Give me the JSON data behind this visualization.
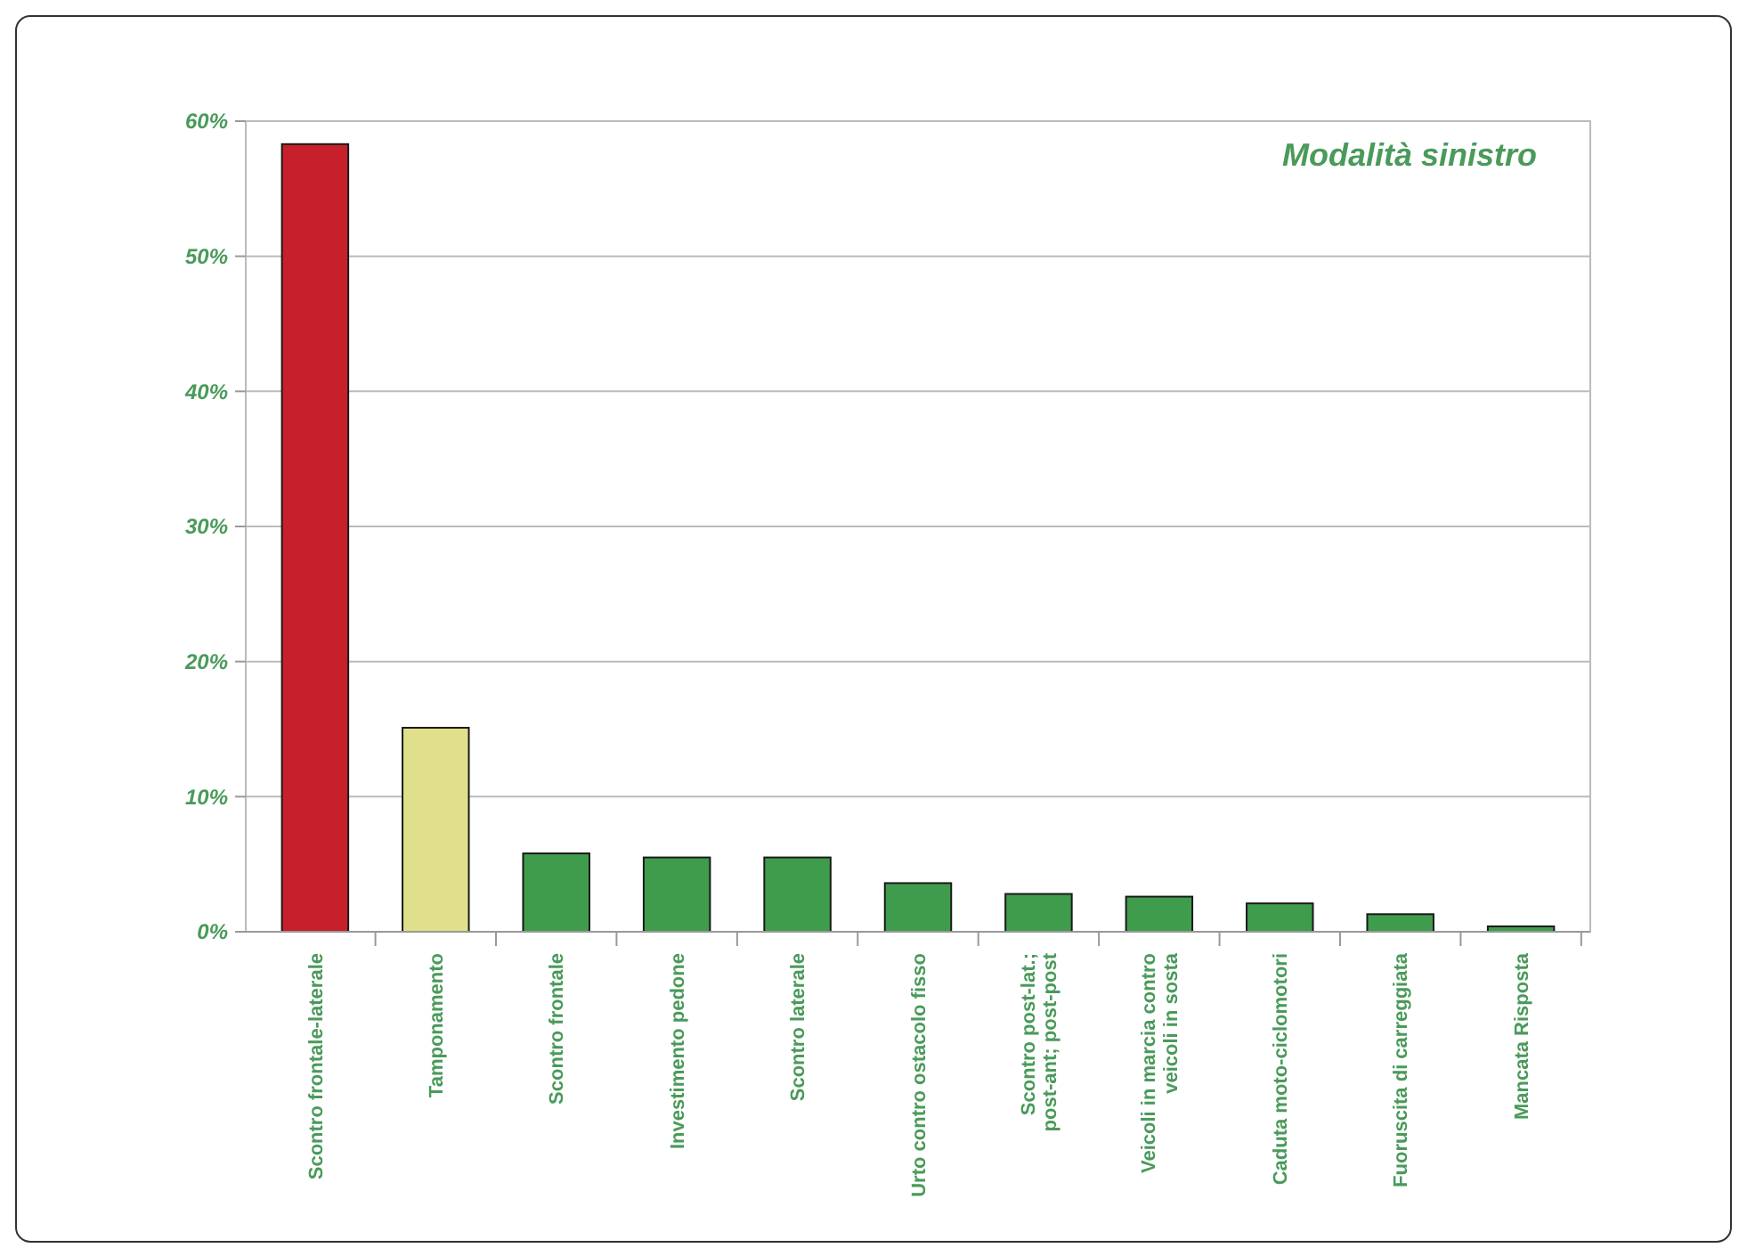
{
  "chart_data": {
    "type": "bar",
    "title": "Modalità sinistro",
    "categories": [
      "Scontro frontale-laterale",
      "Tamponamento",
      "Scontro frontale",
      "Investimento pedone",
      "Scontro laterale",
      "Urto contro ostacolo fisso",
      "Scontro post-lat.; post-ant; post-post",
      "Veicoli in marcia contro veicoli  in sosta",
      "Caduta moto-ciclomotori",
      "Fuoruscita di carreggiata",
      "Mancata Risposta"
    ],
    "values": [
      58.3,
      15.1,
      5.8,
      5.5,
      5.5,
      3.6,
      2.8,
      2.6,
      2.1,
      1.3,
      0.4
    ],
    "colors": [
      "#c8202a",
      "#e0e08c",
      "#3f9c4c",
      "#3f9c4c",
      "#3f9c4c",
      "#3f9c4c",
      "#3f9c4c",
      "#3f9c4c",
      "#3f9c4c",
      "#3f9c4c",
      "#3f9c4c"
    ],
    "ylim": [
      0,
      60
    ],
    "yticks": [
      {
        "value": 0,
        "label": "0%"
      },
      {
        "value": 10,
        "label": "10%"
      },
      {
        "value": 20,
        "label": "20%"
      },
      {
        "value": 30,
        "label": "30%"
      },
      {
        "value": 40,
        "label": "40%"
      },
      {
        "value": 50,
        "label": "50%"
      },
      {
        "value": 60,
        "label": "60%"
      }
    ],
    "grid": "y"
  }
}
